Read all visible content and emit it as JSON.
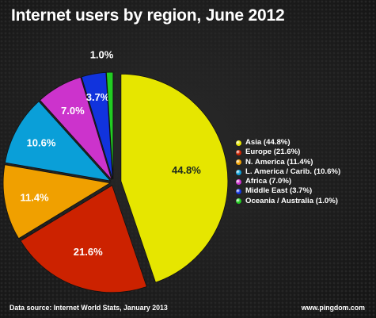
{
  "chart_data": {
    "type": "pie",
    "title": "Internet users by region, June 2012",
    "slices": [
      {
        "name": "Asia",
        "value": 44.8,
        "label": "44.8%",
        "legend": "Asia (44.8%)",
        "color": "#e6e600"
      },
      {
        "name": "Europe",
        "value": 21.6,
        "label": "21.6%",
        "legend": "Europe (21.6%)",
        "color": "#cc2200"
      },
      {
        "name": "N. America",
        "value": 11.4,
        "label": "11.4%",
        "legend": "N. America (11.4%)",
        "color": "#f0a000"
      },
      {
        "name": "L. America / Carib.",
        "value": 10.6,
        "label": "10.6%",
        "legend": "L. America / Carib. (10.6%)",
        "color": "#0a9fd8"
      },
      {
        "name": "Africa",
        "value": 7.0,
        "label": "7.0%",
        "legend": "Africa (7.0%)",
        "color": "#cc33cc"
      },
      {
        "name": "Middle East",
        "value": 3.7,
        "label": "3.7%",
        "legend": "Middle East (3.7%)",
        "color": "#1133dd"
      },
      {
        "name": "Oceania / Australia",
        "value": 1.0,
        "label": "1.0%",
        "legend": "Oceania / Australia (1.0%)",
        "color": "#22cc22"
      }
    ],
    "legend_position": "right"
  },
  "footer": {
    "source": "Data source: Internet World Stats, January 2013",
    "site": "www.pingdom.com"
  }
}
